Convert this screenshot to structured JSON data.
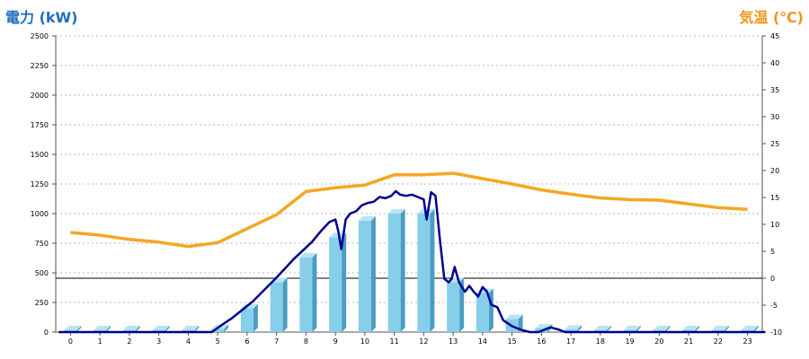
{
  "chart_data": {
    "type": "bar",
    "left_title": "電力 (kW)",
    "right_title": "気温 (℃)",
    "categories": [
      "0",
      "1",
      "2",
      "3",
      "4",
      "5",
      "6",
      "7",
      "8",
      "9",
      "10",
      "11",
      "12",
      "13",
      "14",
      "15",
      "16",
      "17",
      "18",
      "19",
      "20",
      "21",
      "22",
      "23"
    ],
    "y_left": {
      "ylim": [
        0,
        2500
      ],
      "ticks": [
        "0",
        "250",
        "500",
        "750",
        "1000",
        "1250",
        "1500",
        "1750",
        "2000",
        "2250",
        "2500"
      ]
    },
    "y_right": {
      "ylim": [
        -10,
        45
      ],
      "ticks": [
        "-10",
        "-5",
        "0",
        "5",
        "10",
        "15",
        "20",
        "25",
        "30",
        "35",
        "40",
        "45"
      ]
    },
    "grid": "horizontal dotted",
    "colors": {
      "bars": "#87ceeb",
      "bar_side": "#4a9cc0",
      "power_line": "#000090",
      "temp_line": "#f5a623",
      "left_title": "#1f6fbf",
      "right_title": "#f0941e"
    },
    "series": [
      {
        "kind": "bar",
        "axis": "left",
        "values": [
          15,
          15,
          15,
          15,
          15,
          25,
          200,
          420,
          630,
          800,
          940,
          1000,
          1000,
          420,
          330,
          110,
          30,
          20,
          15,
          15,
          15,
          15,
          15,
          15
        ]
      },
      {
        "kind": "line",
        "axis": "left",
        "points": [
          [
            -0.4,
            0
          ],
          [
            4.8,
            0
          ],
          [
            5.2,
            70
          ],
          [
            5.5,
            120
          ],
          [
            5.8,
            180
          ],
          [
            6.2,
            260
          ],
          [
            6.6,
            360
          ],
          [
            7,
            460
          ],
          [
            7.3,
            540
          ],
          [
            7.6,
            620
          ],
          [
            7.9,
            690
          ],
          [
            8.2,
            760
          ],
          [
            8.5,
            850
          ],
          [
            8.8,
            930
          ],
          [
            9,
            950
          ],
          [
            9.1,
            850
          ],
          [
            9.2,
            700
          ],
          [
            9.35,
            950
          ],
          [
            9.5,
            1000
          ],
          [
            9.7,
            1020
          ],
          [
            9.9,
            1070
          ],
          [
            10.1,
            1090
          ],
          [
            10.3,
            1100
          ],
          [
            10.5,
            1140
          ],
          [
            10.7,
            1130
          ],
          [
            10.9,
            1150
          ],
          [
            11.05,
            1190
          ],
          [
            11.2,
            1160
          ],
          [
            11.4,
            1150
          ],
          [
            11.6,
            1160
          ],
          [
            11.8,
            1140
          ],
          [
            12.0,
            1120
          ],
          [
            12.1,
            950
          ],
          [
            12.25,
            1180
          ],
          [
            12.4,
            1150
          ],
          [
            12.55,
            780
          ],
          [
            12.7,
            450
          ],
          [
            12.85,
            420
          ],
          [
            12.95,
            450
          ],
          [
            13.05,
            550
          ],
          [
            13.2,
            420
          ],
          [
            13.4,
            340
          ],
          [
            13.55,
            390
          ],
          [
            13.7,
            340
          ],
          [
            13.85,
            300
          ],
          [
            14,
            380
          ],
          [
            14.15,
            340
          ],
          [
            14.3,
            230
          ],
          [
            14.5,
            210
          ],
          [
            14.7,
            100
          ],
          [
            15,
            50
          ],
          [
            15.3,
            20
          ],
          [
            15.6,
            0
          ],
          [
            15.9,
            0
          ],
          [
            16.3,
            40
          ],
          [
            16.6,
            20
          ],
          [
            16.8,
            0
          ],
          [
            23.6,
            0
          ]
        ]
      },
      {
        "kind": "line",
        "axis": "right",
        "values": [
          8.5,
          8,
          7.2,
          6.7,
          5.9,
          6.6,
          9.2,
          11.8,
          16.1,
          16.8,
          17.3,
          19.2,
          19.2,
          19.5,
          18.5,
          17.5,
          16.4,
          15.6,
          14.9,
          14.6,
          14.5,
          13.8,
          13.1,
          12.8
        ]
      }
    ]
  }
}
